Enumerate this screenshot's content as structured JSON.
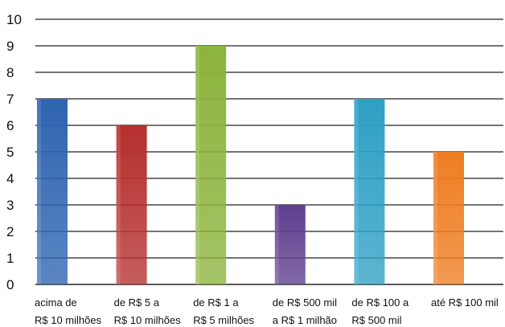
{
  "chart_data": {
    "type": "bar",
    "categories": [
      [
        "acima de",
        "R$ 10 milhões"
      ],
      [
        "de R$ 5 a",
        "R$ 10 milhões"
      ],
      [
        "de R$ 1 a",
        "R$ 5 milhões"
      ],
      [
        "de R$ 500 mil",
        "a R$ 1 milhão"
      ],
      [
        "de R$ 100 a",
        "R$ 500 mil"
      ],
      [
        "até R$ 100 mil"
      ]
    ],
    "values": [
      7,
      6,
      9,
      3,
      7,
      5
    ],
    "colors": [
      "#2e64b0",
      "#b5302e",
      "#8cb33c",
      "#5e3f8f",
      "#2ea0c4",
      "#ee7d22"
    ],
    "ylim": [
      0,
      10
    ],
    "yticks": [
      "0",
      "1",
      "2",
      "3",
      "4",
      "5",
      "6",
      "7",
      "8",
      "9",
      "10"
    ],
    "grid": true,
    "legend": "none",
    "title": "",
    "xlabel": "",
    "ylabel": ""
  }
}
